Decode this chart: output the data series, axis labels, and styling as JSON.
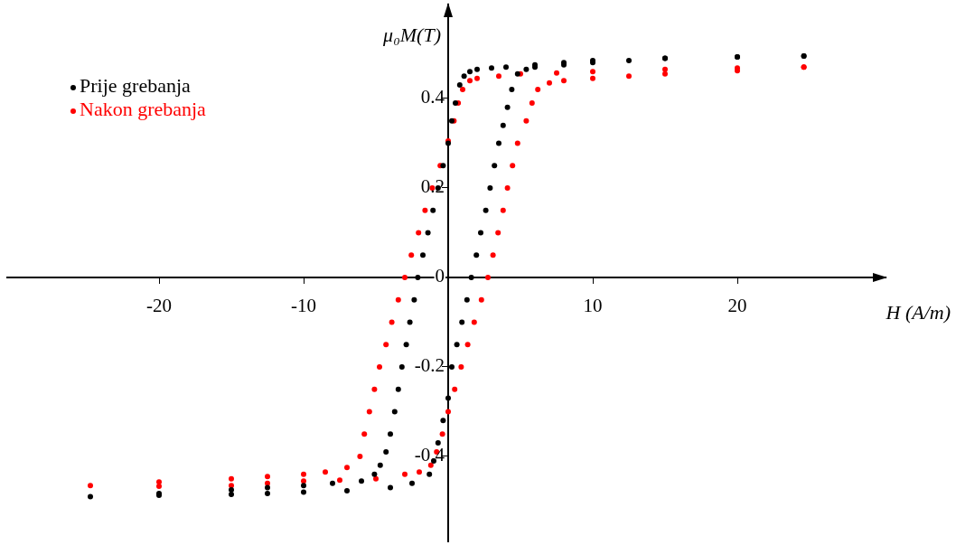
{
  "chart_data": {
    "type": "scatter",
    "marker": "circle",
    "xlabel": "H (A/m)",
    "ylabel": "μ₀M(T)",
    "xlim": [
      -30.5,
      30.25
    ],
    "ylim": [
      -0.59,
      0.61
    ],
    "xticks": [
      -20,
      -10,
      10,
      20
    ],
    "yticks": [
      -0.4,
      -0.2,
      0,
      0.2,
      0.4
    ],
    "grid": false,
    "legend": "top left",
    "series": [
      {
        "name": "Prije grebanja",
        "color": "#000000",
        "x": [
          24.6,
          20,
          15,
          10,
          8,
          6,
          4,
          3,
          2,
          1.5,
          1.1,
          0.8,
          0.5,
          0.25,
          0,
          -0.35,
          -0.7,
          -1.05,
          -1.4,
          -1.75,
          -2.1,
          -2.35,
          -2.65,
          -2.9,
          -3.2,
          -3.45,
          -3.7,
          -4.0,
          -4.3,
          -4.7,
          -5.1,
          -6,
          -8,
          -10,
          -12.5,
          -15,
          -20,
          -24.75,
          -20,
          -15,
          -12.5,
          -10,
          -7,
          -4,
          -2.5,
          -1.3,
          -1,
          -0.7,
          -0.35,
          0,
          0.25,
          0.6,
          0.95,
          1.3,
          1.6,
          1.95,
          2.25,
          2.6,
          2.9,
          3.2,
          3.5,
          3.8,
          4.1,
          4.4,
          4.8,
          5.4,
          6,
          8,
          10,
          12.5,
          15,
          20,
          24.6
        ],
        "values": [
          0.495,
          0.493,
          0.49,
          0.485,
          0.48,
          0.475,
          0.47,
          0.468,
          0.465,
          0.46,
          0.45,
          0.43,
          0.39,
          0.35,
          0.3,
          0.25,
          0.2,
          0.15,
          0.1,
          0.05,
          0,
          -0.05,
          -0.1,
          -0.15,
          -0.2,
          -0.25,
          -0.3,
          -0.35,
          -0.39,
          -0.42,
          -0.44,
          -0.455,
          -0.46,
          -0.465,
          -0.47,
          -0.475,
          -0.483,
          -0.49,
          -0.487,
          -0.485,
          -0.483,
          -0.48,
          -0.477,
          -0.47,
          -0.46,
          -0.44,
          -0.41,
          -0.37,
          -0.32,
          -0.27,
          -0.2,
          -0.15,
          -0.1,
          -0.05,
          0,
          0.05,
          0.1,
          0.15,
          0.2,
          0.25,
          0.3,
          0.34,
          0.38,
          0.42,
          0.455,
          0.465,
          0.47,
          0.475,
          0.48,
          0.485,
          0.49,
          0.493,
          0.495
        ]
      },
      {
        "name": "Nakon grebanja",
        "color": "#ff0000",
        "x": [
          24.6,
          20,
          15,
          10,
          7.5,
          5,
          3.5,
          2,
          1.5,
          1,
          0.7,
          0.4,
          0,
          -0.55,
          -1.1,
          -1.6,
          -2.05,
          -2.55,
          -3,
          -3.45,
          -3.9,
          -4.3,
          -4.75,
          -5.1,
          -5.45,
          -5.8,
          -6.1,
          -7,
          -8.5,
          -10,
          -12.5,
          -15,
          -20,
          -24.75,
          -20,
          -15,
          -12.5,
          -10,
          -7.5,
          -5,
          -3,
          -2,
          -1.2,
          -0.8,
          -0.4,
          0,
          0.45,
          0.9,
          1.35,
          1.8,
          2.3,
          2.75,
          3.1,
          3.45,
          3.8,
          4.1,
          4.45,
          4.8,
          5.4,
          5.8,
          6.2,
          7,
          8,
          10,
          12.5,
          15,
          20,
          24.6
        ],
        "values": [
          0.47,
          0.468,
          0.465,
          0.46,
          0.457,
          0.455,
          0.45,
          0.445,
          0.44,
          0.42,
          0.39,
          0.35,
          0.305,
          0.25,
          0.2,
          0.15,
          0.1,
          0.05,
          0,
          -0.05,
          -0.1,
          -0.15,
          -0.2,
          -0.25,
          -0.3,
          -0.35,
          -0.4,
          -0.425,
          -0.435,
          -0.44,
          -0.445,
          -0.45,
          -0.457,
          -0.465,
          -0.467,
          -0.465,
          -0.46,
          -0.455,
          -0.453,
          -0.45,
          -0.44,
          -0.435,
          -0.42,
          -0.39,
          -0.35,
          -0.3,
          -0.25,
          -0.2,
          -0.15,
          -0.1,
          -0.05,
          0,
          0.05,
          0.1,
          0.15,
          0.2,
          0.25,
          0.3,
          0.35,
          0.39,
          0.42,
          0.435,
          0.44,
          0.445,
          0.45,
          0.455,
          0.462,
          0.47
        ]
      }
    ]
  }
}
